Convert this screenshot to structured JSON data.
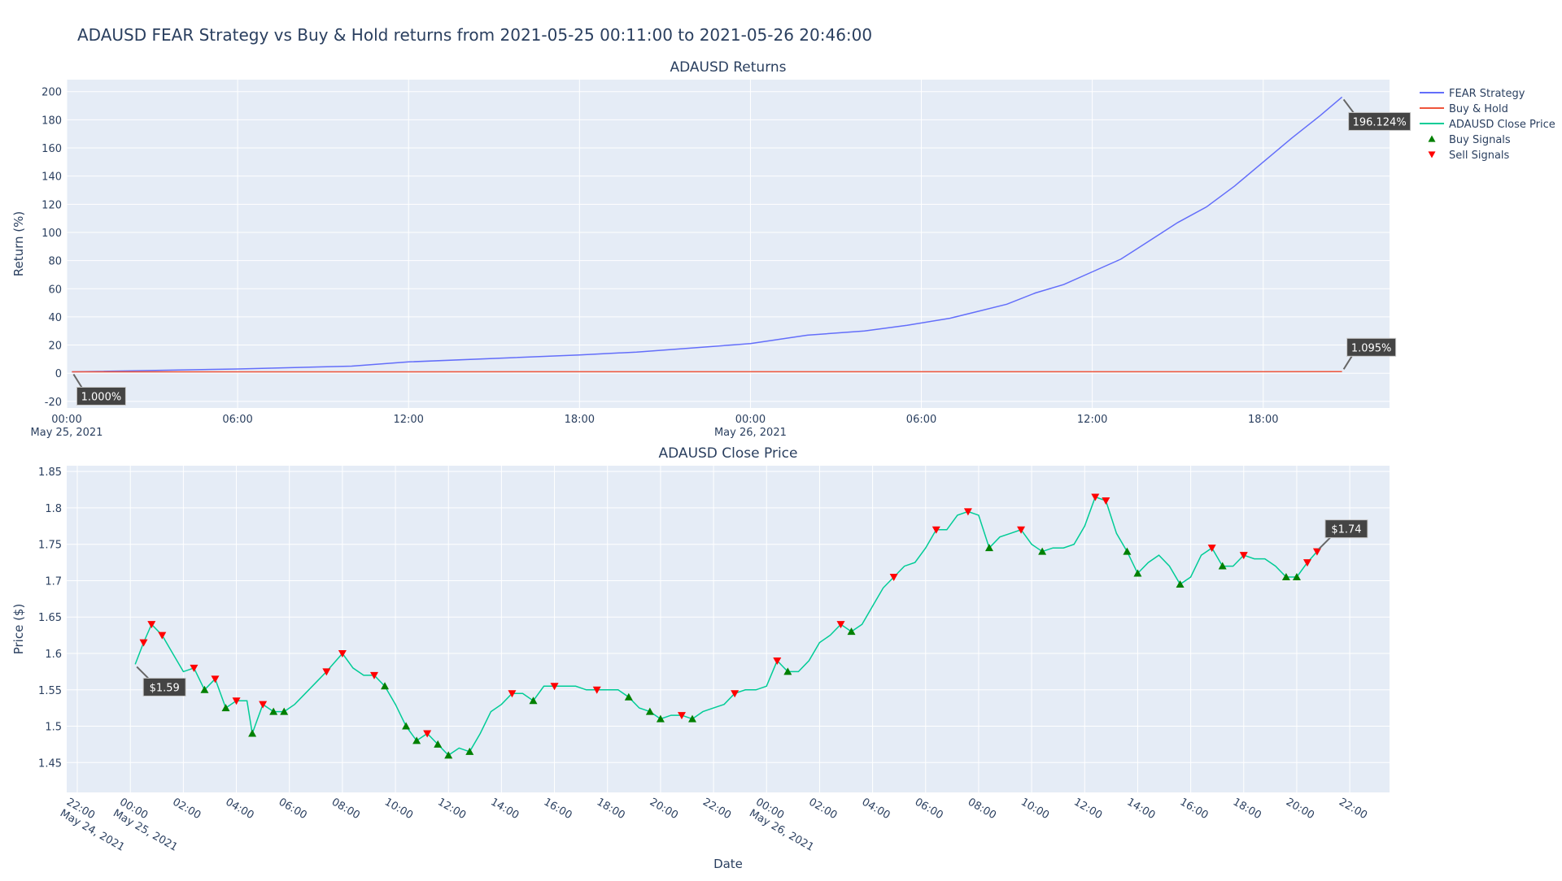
{
  "title": "ADAUSD FEAR Strategy vs Buy & Hold returns from 2021-05-25 00:11:00 to 2021-05-26 20:46:00",
  "legend": "right",
  "chart_data": [
    {
      "type": "line",
      "title": "ADAUSD Returns",
      "y_label": "Return (%)",
      "grid": true,
      "xlim": [
        "2021-05-25 00:00",
        "2021-05-26 22:26"
      ],
      "xticks": [
        {
          "value": "2021-05-25 00:00",
          "label": "00:00",
          "sublabel": "May 25, 2021"
        },
        {
          "value": "2021-05-25 06:00",
          "label": "06:00"
        },
        {
          "value": "2021-05-25 12:00",
          "label": "12:00"
        },
        {
          "value": "2021-05-25 18:00",
          "label": "18:00"
        },
        {
          "value": "2021-05-26 00:00",
          "label": "00:00",
          "sublabel": "May 26, 2021"
        },
        {
          "value": "2021-05-26 06:00",
          "label": "06:00"
        },
        {
          "value": "2021-05-26 12:00",
          "label": "12:00"
        },
        {
          "value": "2021-05-26 18:00",
          "label": "18:00"
        }
      ],
      "ylim": [
        -24.7,
        208.5
      ],
      "yticks": [
        -20,
        0,
        20,
        40,
        60,
        80,
        100,
        120,
        140,
        160,
        180,
        200
      ],
      "series": [
        {
          "name": "FEAR Strategy",
          "color": "#636efa",
          "mode": "lines",
          "x": [
            "2021-05-25 00:11",
            "2021-05-25 06:00",
            "2021-05-25 10:00",
            "2021-05-25 12:00",
            "2021-05-25 18:00",
            "2021-05-25 20:00",
            "2021-05-26 00:00",
            "2021-05-26 02:00",
            "2021-05-26 04:00",
            "2021-05-26 05:30",
            "2021-05-26 07:00",
            "2021-05-26 08:00",
            "2021-05-26 09:00",
            "2021-05-26 10:00",
            "2021-05-26 11:00",
            "2021-05-26 12:00",
            "2021-05-26 13:00",
            "2021-05-26 14:00",
            "2021-05-26 15:00",
            "2021-05-26 16:00",
            "2021-05-26 17:00",
            "2021-05-26 18:00",
            "2021-05-26 19:00",
            "2021-05-26 20:00",
            "2021-05-26 20:46"
          ],
          "values": [
            1.0,
            3,
            5,
            8,
            13,
            15,
            21,
            27,
            30,
            34,
            39,
            44,
            49,
            57,
            63,
            72,
            81,
            94,
            107,
            118,
            133,
            150,
            167,
            183,
            196.124
          ]
        },
        {
          "name": "Buy & Hold",
          "color": "#ef553b",
          "mode": "lines",
          "x": [
            "2021-05-25 00:11",
            "2021-05-26 20:46"
          ],
          "values": [
            1.0,
            1.095
          ]
        }
      ],
      "annotations": [
        {
          "text": "1.000%",
          "x": "2021-05-25 00:11",
          "y": 1.0
        },
        {
          "text": "196.124%",
          "x": "2021-05-26 20:46",
          "y": 196.124
        },
        {
          "text": "1.095%",
          "x": "2021-05-26 20:46",
          "y": 1.095
        }
      ]
    },
    {
      "type": "line",
      "title": "ADAUSD Close Price",
      "y_label": "Price ($)",
      "x_label": "Date",
      "grid": true,
      "xlim": [
        "2021-05-24 21:36",
        "2021-05-26 23:30"
      ],
      "xticks": [
        {
          "value": "2021-05-24 22:00",
          "label": "22:00",
          "sublabel": "May 24, 2021"
        },
        {
          "value": "2021-05-25 00:00",
          "label": "00:00",
          "sublabel": "May 25, 2021"
        },
        {
          "value": "2021-05-25 02:00",
          "label": "02:00"
        },
        {
          "value": "2021-05-25 04:00",
          "label": "04:00"
        },
        {
          "value": "2021-05-25 06:00",
          "label": "06:00"
        },
        {
          "value": "2021-05-25 08:00",
          "label": "08:00"
        },
        {
          "value": "2021-05-25 10:00",
          "label": "10:00"
        },
        {
          "value": "2021-05-25 12:00",
          "label": "12:00"
        },
        {
          "value": "2021-05-25 14:00",
          "label": "14:00"
        },
        {
          "value": "2021-05-25 16:00",
          "label": "16:00"
        },
        {
          "value": "2021-05-25 18:00",
          "label": "18:00"
        },
        {
          "value": "2021-05-25 20:00",
          "label": "20:00"
        },
        {
          "value": "2021-05-25 22:00",
          "label": "22:00"
        },
        {
          "value": "2021-05-26 00:00",
          "label": "00:00",
          "sublabel": "May 26, 2021"
        },
        {
          "value": "2021-05-26 02:00",
          "label": "02:00"
        },
        {
          "value": "2021-05-26 04:00",
          "label": "04:00"
        },
        {
          "value": "2021-05-26 06:00",
          "label": "06:00"
        },
        {
          "value": "2021-05-26 08:00",
          "label": "08:00"
        },
        {
          "value": "2021-05-26 10:00",
          "label": "10:00"
        },
        {
          "value": "2021-05-26 12:00",
          "label": "12:00"
        },
        {
          "value": "2021-05-26 14:00",
          "label": "14:00"
        },
        {
          "value": "2021-05-26 16:00",
          "label": "16:00"
        },
        {
          "value": "2021-05-26 18:00",
          "label": "18:00"
        },
        {
          "value": "2021-05-26 20:00",
          "label": "20:00"
        },
        {
          "value": "2021-05-26 22:00",
          "label": "22:00"
        }
      ],
      "ylim": [
        1.409,
        1.858
      ],
      "yticks": [
        1.45,
        1.5,
        1.55,
        1.6,
        1.65,
        1.7,
        1.75,
        1.8,
        1.85
      ],
      "series": [
        {
          "name": "ADAUSD Close Price",
          "color": "#00cc96",
          "mode": "lines",
          "x": [
            "2021-05-25 00:11",
            "2021-05-25 00:30",
            "2021-05-25 00:48",
            "2021-05-25 01:12",
            "2021-05-25 01:36",
            "2021-05-25 02:00",
            "2021-05-25 02:24",
            "2021-05-25 02:48",
            "2021-05-25 03:12",
            "2021-05-25 03:36",
            "2021-05-25 04:00",
            "2021-05-25 04:24",
            "2021-05-25 04:36",
            "2021-05-25 05:00",
            "2021-05-25 05:24",
            "2021-05-25 05:48",
            "2021-05-25 06:12",
            "2021-05-25 06:36",
            "2021-05-25 07:00",
            "2021-05-25 07:24",
            "2021-05-25 08:00",
            "2021-05-25 08:24",
            "2021-05-25 08:48",
            "2021-05-25 09:12",
            "2021-05-25 09:36",
            "2021-05-25 10:00",
            "2021-05-25 10:24",
            "2021-05-25 10:48",
            "2021-05-25 11:12",
            "2021-05-25 11:36",
            "2021-05-25 12:00",
            "2021-05-25 12:24",
            "2021-05-25 12:48",
            "2021-05-25 13:12",
            "2021-05-25 13:36",
            "2021-05-25 14:00",
            "2021-05-25 14:24",
            "2021-05-25 14:48",
            "2021-05-25 15:12",
            "2021-05-25 15:36",
            "2021-05-25 16:00",
            "2021-05-25 16:24",
            "2021-05-25 16:48",
            "2021-05-25 17:12",
            "2021-05-25 17:36",
            "2021-05-25 18:00",
            "2021-05-25 18:24",
            "2021-05-25 18:48",
            "2021-05-25 19:12",
            "2021-05-25 19:36",
            "2021-05-25 20:00",
            "2021-05-25 20:24",
            "2021-05-25 20:48",
            "2021-05-25 21:12",
            "2021-05-25 21:36",
            "2021-05-25 22:00",
            "2021-05-25 22:24",
            "2021-05-25 22:48",
            "2021-05-25 23:12",
            "2021-05-25 23:36",
            "2021-05-26 00:00",
            "2021-05-26 00:24",
            "2021-05-26 00:48",
            "2021-05-26 01:12",
            "2021-05-26 01:36",
            "2021-05-26 02:00",
            "2021-05-26 02:24",
            "2021-05-26 02:48",
            "2021-05-26 03:12",
            "2021-05-26 03:36",
            "2021-05-26 04:00",
            "2021-05-26 04:24",
            "2021-05-26 04:48",
            "2021-05-26 05:12",
            "2021-05-26 05:36",
            "2021-05-26 06:00",
            "2021-05-26 06:24",
            "2021-05-26 06:48",
            "2021-05-26 07:12",
            "2021-05-26 07:36",
            "2021-05-26 08:00",
            "2021-05-26 08:24",
            "2021-05-26 08:48",
            "2021-05-26 09:12",
            "2021-05-26 09:36",
            "2021-05-26 10:00",
            "2021-05-26 10:24",
            "2021-05-26 10:48",
            "2021-05-26 11:12",
            "2021-05-26 11:36",
            "2021-05-26 12:00",
            "2021-05-26 12:24",
            "2021-05-26 12:48",
            "2021-05-26 13:12",
            "2021-05-26 13:36",
            "2021-05-26 14:00",
            "2021-05-26 14:24",
            "2021-05-26 14:48",
            "2021-05-26 15:12",
            "2021-05-26 15:36",
            "2021-05-26 16:00",
            "2021-05-26 16:24",
            "2021-05-26 16:48",
            "2021-05-26 17:12",
            "2021-05-26 17:36",
            "2021-05-26 18:00",
            "2021-05-26 18:24",
            "2021-05-26 18:48",
            "2021-05-26 19:12",
            "2021-05-26 19:36",
            "2021-05-26 20:00",
            "2021-05-26 20:24",
            "2021-05-26 20:46"
          ],
          "values": [
            1.585,
            1.615,
            1.64,
            1.625,
            1.6,
            1.575,
            1.58,
            1.55,
            1.565,
            1.525,
            1.535,
            1.535,
            1.49,
            1.53,
            1.52,
            1.52,
            1.53,
            1.545,
            1.56,
            1.575,
            1.6,
            1.58,
            1.57,
            1.57,
            1.555,
            1.53,
            1.5,
            1.48,
            1.49,
            1.475,
            1.46,
            1.47,
            1.465,
            1.49,
            1.52,
            1.53,
            1.545,
            1.545,
            1.535,
            1.555,
            1.555,
            1.555,
            1.555,
            1.55,
            1.55,
            1.55,
            1.55,
            1.54,
            1.525,
            1.52,
            1.51,
            1.515,
            1.515,
            1.51,
            1.52,
            1.525,
            1.53,
            1.545,
            1.55,
            1.55,
            1.555,
            1.59,
            1.575,
            1.575,
            1.59,
            1.615,
            1.625,
            1.64,
            1.63,
            1.64,
            1.665,
            1.69,
            1.705,
            1.72,
            1.725,
            1.745,
            1.77,
            1.77,
            1.79,
            1.795,
            1.79,
            1.745,
            1.76,
            1.765,
            1.77,
            1.75,
            1.74,
            1.745,
            1.745,
            1.75,
            1.775,
            1.815,
            1.81,
            1.765,
            1.74,
            1.71,
            1.725,
            1.735,
            1.72,
            1.695,
            1.705,
            1.735,
            1.745,
            1.72,
            1.72,
            1.735,
            1.73,
            1.73,
            1.72,
            1.705,
            1.705,
            1.725,
            1.74
          ]
        },
        {
          "name": "Buy Signals",
          "color": "#008000",
          "mode": "markers",
          "symbol": "triangle-up",
          "x": [
            "2021-05-25 02:48",
            "2021-05-25 03:36",
            "2021-05-25 04:36",
            "2021-05-25 05:24",
            "2021-05-25 05:48",
            "2021-05-25 09:36",
            "2021-05-25 10:24",
            "2021-05-25 10:48",
            "2021-05-25 11:36",
            "2021-05-25 12:00",
            "2021-05-25 12:48",
            "2021-05-25 15:12",
            "2021-05-25 18:48",
            "2021-05-25 19:36",
            "2021-05-25 20:00",
            "2021-05-25 21:12",
            "2021-05-26 00:48",
            "2021-05-26 03:12",
            "2021-05-26 08:24",
            "2021-05-26 10:24",
            "2021-05-26 13:36",
            "2021-05-26 14:00",
            "2021-05-26 15:36",
            "2021-05-26 17:12",
            "2021-05-26 19:36",
            "2021-05-26 20:00"
          ],
          "values": [
            1.55,
            1.525,
            1.49,
            1.52,
            1.52,
            1.555,
            1.5,
            1.48,
            1.475,
            1.46,
            1.465,
            1.535,
            1.54,
            1.52,
            1.51,
            1.51,
            1.575,
            1.63,
            1.745,
            1.74,
            1.74,
            1.71,
            1.695,
            1.72,
            1.705,
            1.705
          ]
        },
        {
          "name": "Sell Signals",
          "color": "#ff0000",
          "mode": "markers",
          "symbol": "triangle-down",
          "x": [
            "2021-05-25 00:30",
            "2021-05-25 00:48",
            "2021-05-25 01:12",
            "2021-05-25 02:24",
            "2021-05-25 03:12",
            "2021-05-25 04:00",
            "2021-05-25 05:00",
            "2021-05-25 07:24",
            "2021-05-25 08:00",
            "2021-05-25 09:12",
            "2021-05-25 11:12",
            "2021-05-25 14:24",
            "2021-05-25 16:00",
            "2021-05-25 17:36",
            "2021-05-25 20:48",
            "2021-05-25 22:48",
            "2021-05-26 00:24",
            "2021-05-26 02:48",
            "2021-05-26 04:48",
            "2021-05-26 06:24",
            "2021-05-26 07:36",
            "2021-05-26 09:36",
            "2021-05-26 12:24",
            "2021-05-26 12:48",
            "2021-05-26 16:48",
            "2021-05-26 18:00",
            "2021-05-26 20:24",
            "2021-05-26 20:46"
          ],
          "values": [
            1.615,
            1.64,
            1.625,
            1.58,
            1.565,
            1.535,
            1.53,
            1.575,
            1.6,
            1.57,
            1.49,
            1.545,
            1.555,
            1.55,
            1.515,
            1.545,
            1.59,
            1.64,
            1.705,
            1.77,
            1.795,
            1.77,
            1.815,
            1.81,
            1.745,
            1.735,
            1.725,
            1.74
          ]
        }
      ],
      "annotations": [
        {
          "text": "$1.59",
          "x": "2021-05-25 00:11",
          "y": 1.585
        },
        {
          "text": "$1.74",
          "x": "2021-05-26 20:46",
          "y": 1.74
        }
      ]
    }
  ]
}
